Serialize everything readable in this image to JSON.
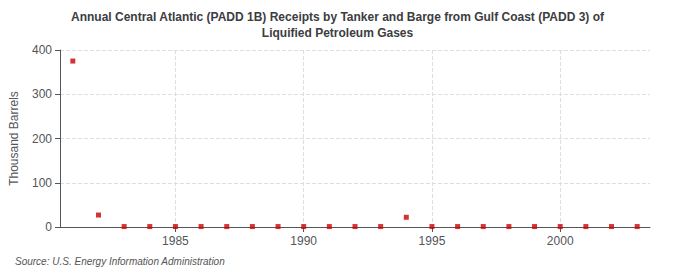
{
  "chart_data": {
    "type": "scatter",
    "title": "Annual Central Atlantic (PADD 1B) Receipts by Tanker and Barge from Gulf Coast (PADD 3) of\nLiquified Petroleum Gases",
    "ylabel": "Thousand Barrels",
    "source": "Source: U.S. Energy Information Administration",
    "x": [
      1981,
      1982,
      1983,
      1984,
      1985,
      1986,
      1987,
      1988,
      1989,
      1990,
      1991,
      1992,
      1993,
      1994,
      1995,
      1996,
      1997,
      1998,
      1999,
      2000,
      2001,
      2002,
      2003
    ],
    "values": [
      375,
      27,
      1,
      1,
      1,
      1,
      1,
      1,
      1,
      1,
      1,
      1,
      1,
      22,
      1,
      1,
      1,
      1,
      1,
      1,
      1,
      1,
      1
    ],
    "color": "#cc0000",
    "marker": "square",
    "xlim": [
      1980.5,
      2003.5
    ],
    "xticks": [
      1985,
      1990,
      1995,
      2000
    ],
    "ylim": [
      0,
      400
    ],
    "yticks": [
      0,
      100,
      200,
      300,
      400
    ],
    "grid": true
  }
}
